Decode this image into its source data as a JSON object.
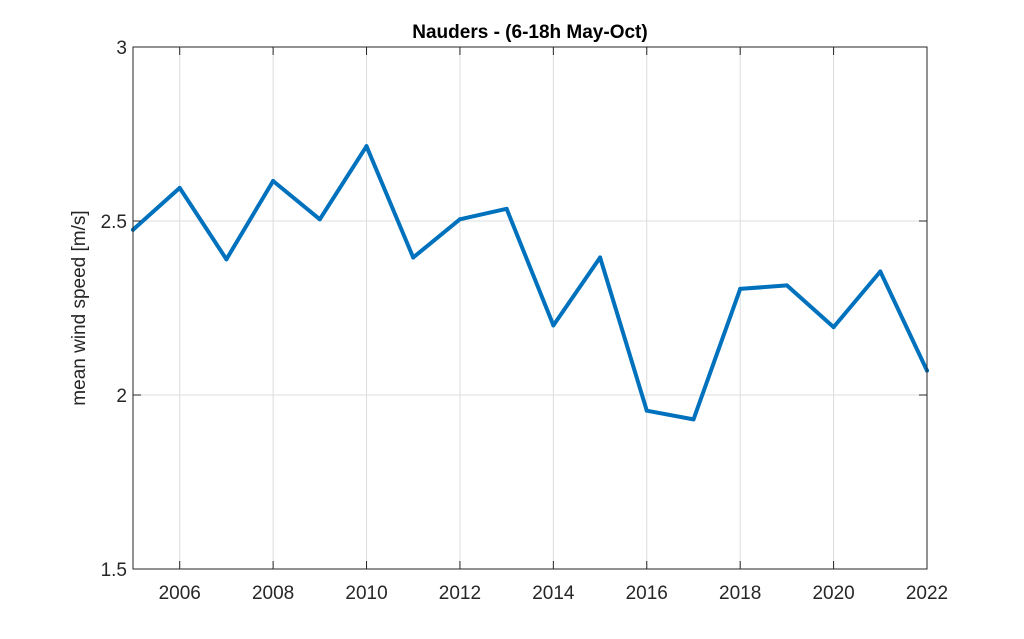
{
  "chart_data": {
    "type": "line",
    "title": "Nauders - (6-18h May-Oct)",
    "xlabel": "",
    "ylabel": "mean wind speed [m/s]",
    "xlim": [
      2005,
      2022
    ],
    "ylim": [
      1.5,
      3
    ],
    "xticks": [
      2006,
      2008,
      2010,
      2012,
      2014,
      2016,
      2018,
      2020,
      2022
    ],
    "yticks": [
      1.5,
      2,
      2.5,
      3
    ],
    "ytick_labels": [
      "1.5",
      "2",
      "2.5",
      "3"
    ],
    "grid": true,
    "series": [
      {
        "color": "#0072BD",
        "x": [
          2005,
          2006,
          2007,
          2008,
          2009,
          2010,
          2011,
          2012,
          2013,
          2014,
          2015,
          2016,
          2017,
          2018,
          2019,
          2020,
          2021,
          2022
        ],
        "y": [
          2.475,
          2.595,
          2.39,
          2.615,
          2.505,
          2.715,
          2.395,
          2.505,
          2.535,
          2.2,
          2.395,
          1.955,
          1.93,
          2.305,
          2.315,
          2.195,
          2.355,
          2.07
        ]
      }
    ]
  }
}
